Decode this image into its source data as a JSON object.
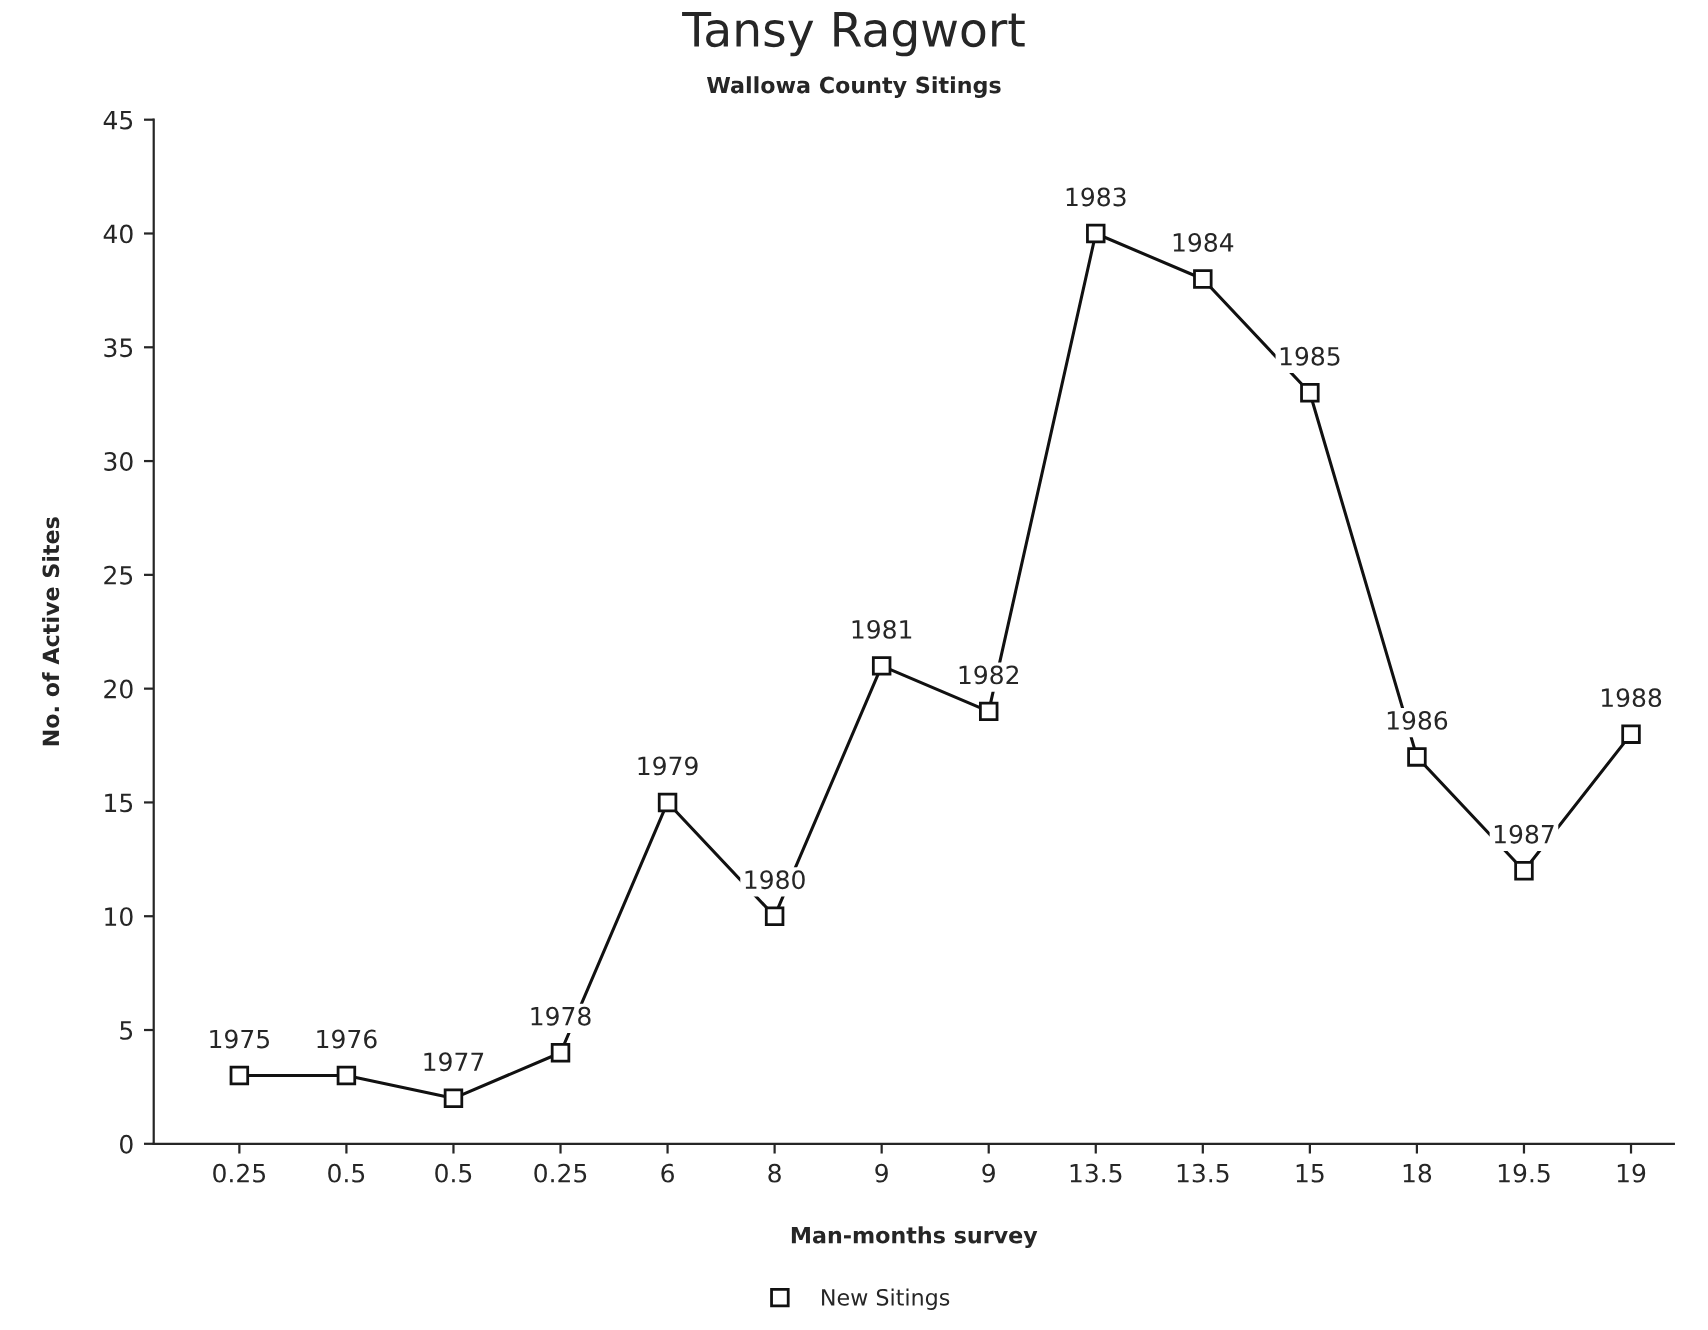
{
  "chart_data": {
    "type": "line",
    "title": "Tansy Ragwort",
    "subtitle": "Wallowa County Sitings",
    "xlabel": "Man-months survey",
    "ylabel": "No. of Active Sites",
    "categories": [
      "0.25",
      "0.5",
      "0.5",
      "0.25",
      "6",
      "8",
      "9",
      "9",
      "13.5",
      "13.5",
      "15",
      "18",
      "19.5",
      "19"
    ],
    "series": [
      {
        "name": "New Sitings",
        "color": "#111111",
        "values": [
          3,
          3,
          2,
          4,
          15,
          10,
          21,
          19,
          40,
          38,
          33,
          17,
          12,
          18
        ]
      }
    ],
    "annotations": [
      "1975",
      "1976",
      "1977",
      "1978",
      "1979",
      "1980",
      "1981",
      "1982",
      "1983",
      "1984",
      "1985",
      "1986",
      "1987",
      "1988"
    ],
    "ylim": [
      0,
      45
    ],
    "yticks": [
      0,
      5,
      10,
      15,
      20,
      25,
      30,
      35,
      40,
      45
    ],
    "grid": false,
    "legend": "bottom",
    "marker": "square",
    "line_style": "solid"
  }
}
